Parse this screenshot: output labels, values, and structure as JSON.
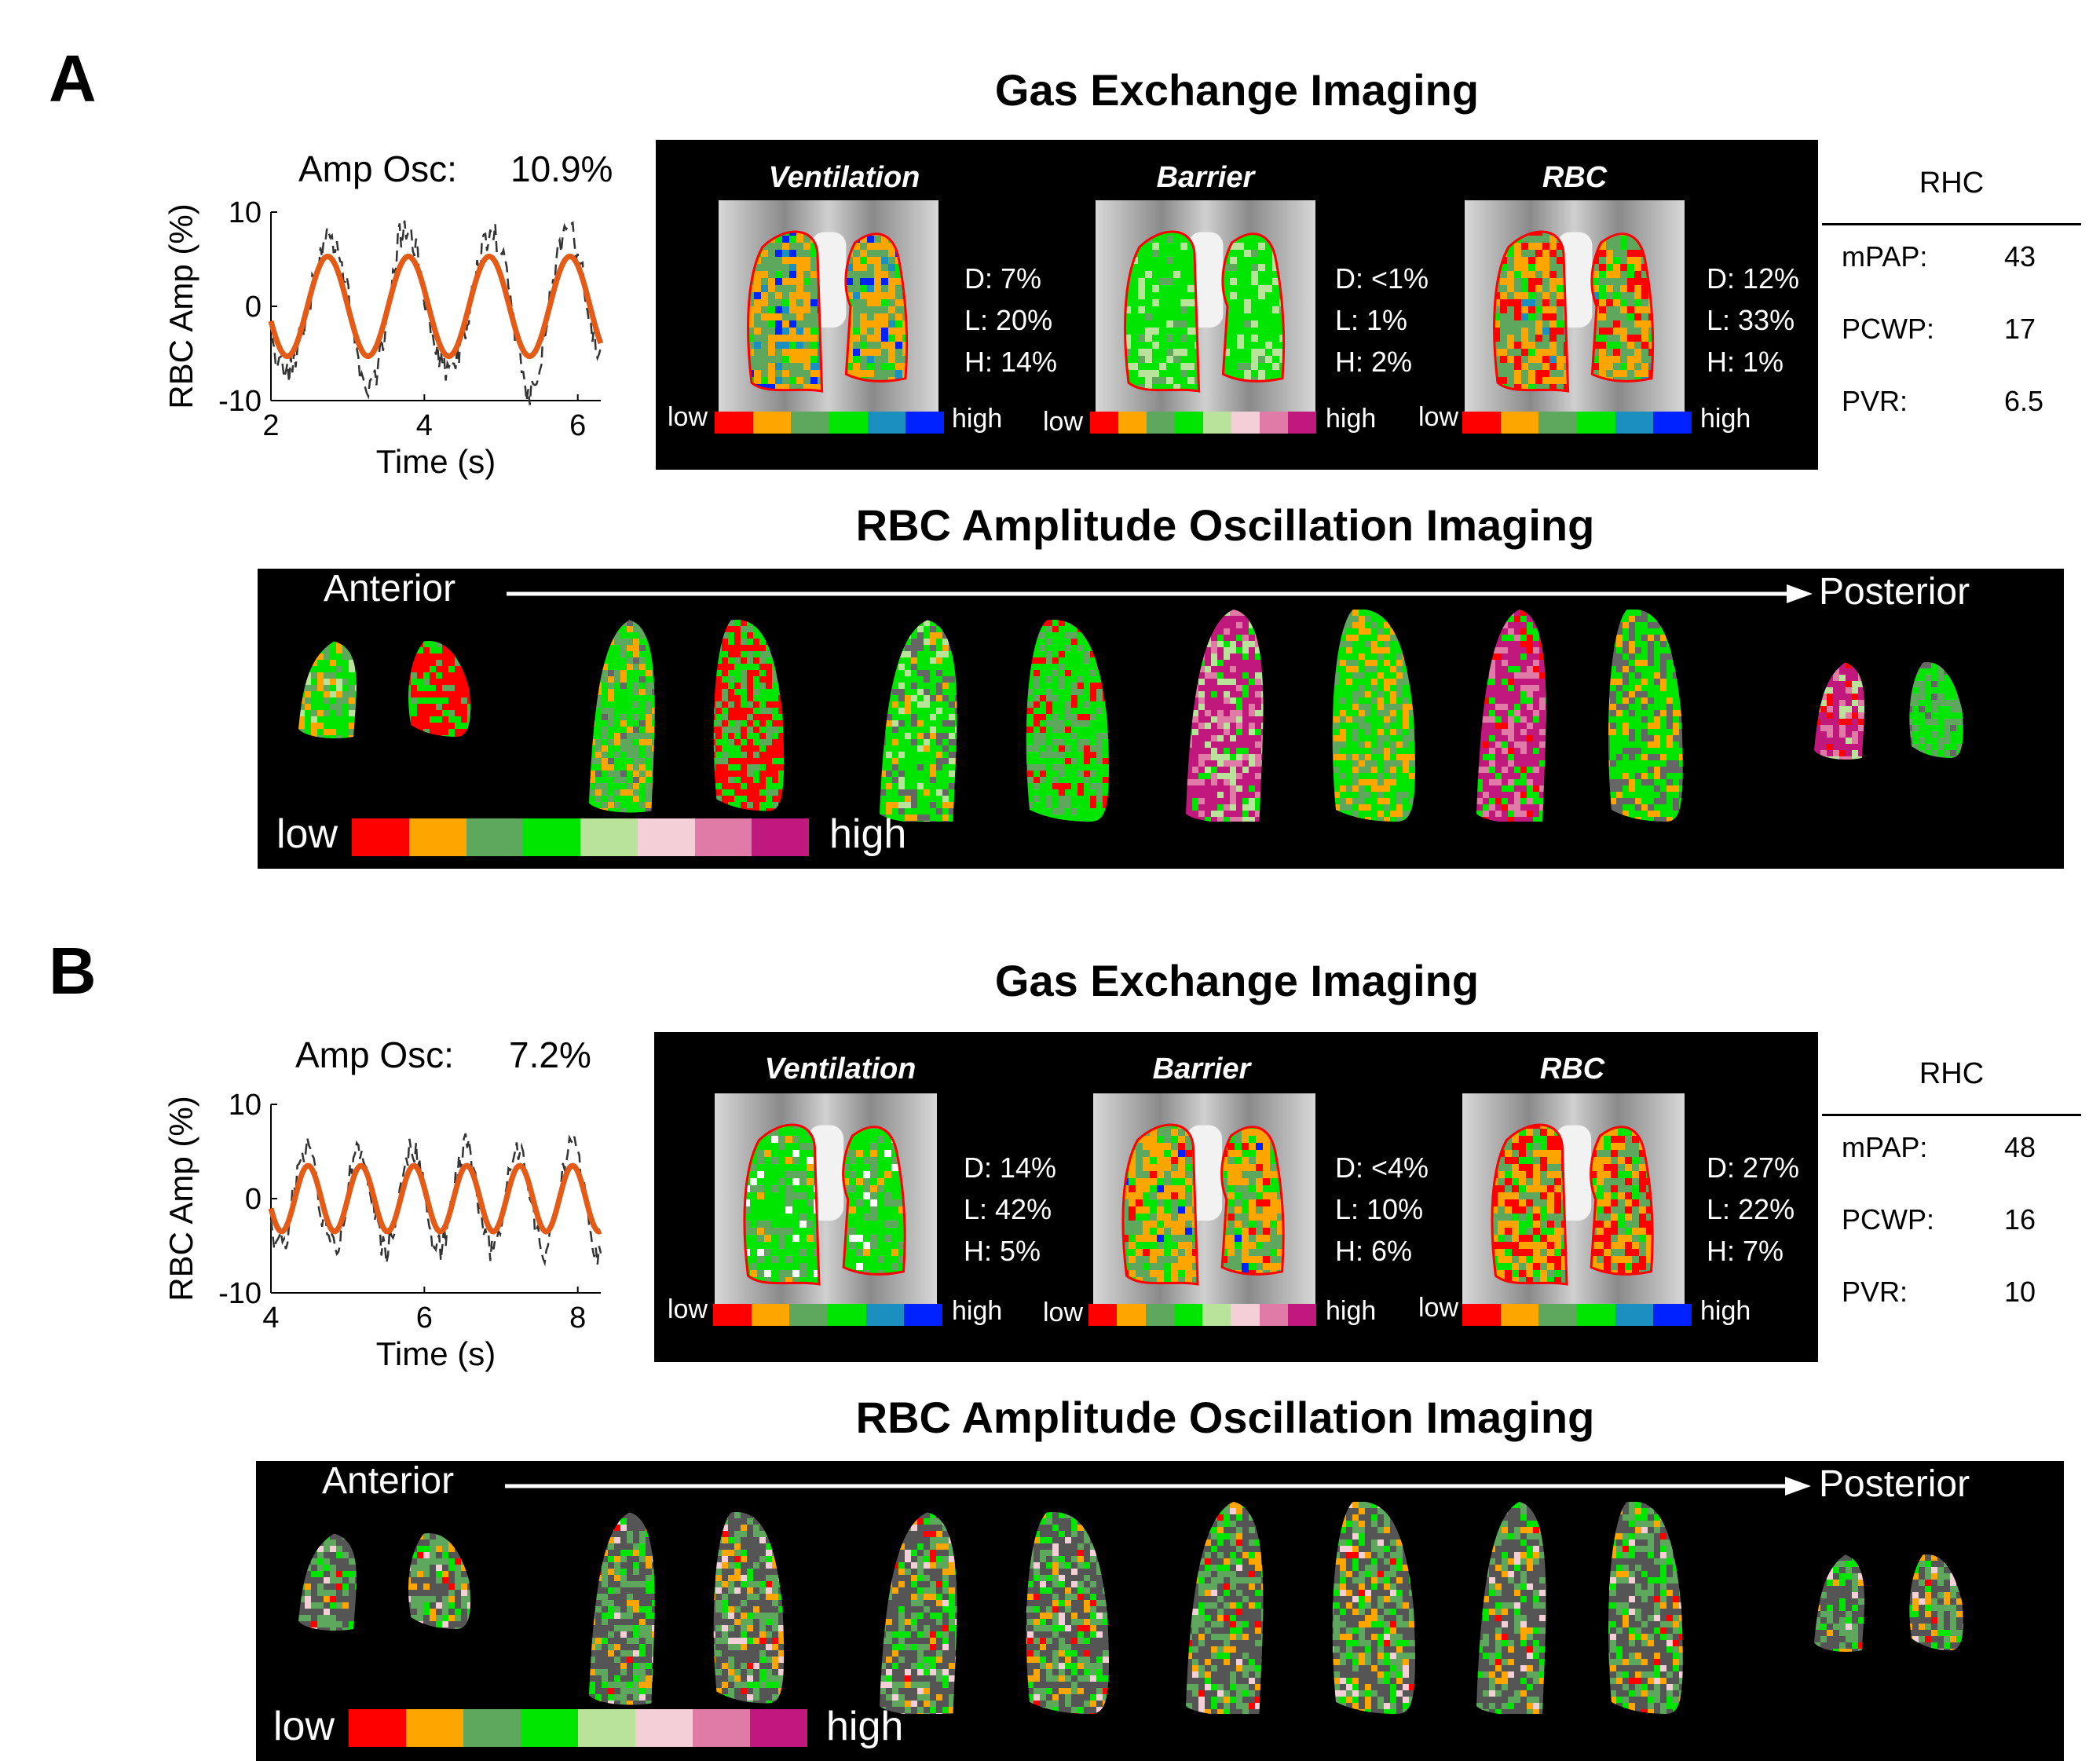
{
  "colors": {
    "gx6": [
      "#ff0000",
      "#ffa500",
      "#5ea85e",
      "#00e600",
      "#1b8fbf",
      "#0022ff"
    ],
    "rbc8": [
      "#ff0000",
      "#ffa500",
      "#5ea85e",
      "#00e600",
      "#b9e39a",
      "#f5cfd8",
      "#e07aa6",
      "#c0187c"
    ],
    "fit": "#e35b17",
    "raw": "#333333"
  },
  "panels": [
    {
      "letter": "A",
      "gx_title": "Gas Exchange Imaging",
      "rbc_title": "RBC Amplitude Oscillation Imaging",
      "amp_label": "Amp Osc:",
      "amp_value": "10.9%",
      "chart_data": {
        "type": "line",
        "xlabel": "Time (s)",
        "ylabel": "RBC Amp (%)",
        "xlim": [
          2,
          6.3
        ],
        "ylim": [
          -10,
          10
        ],
        "xticks": [
          "2",
          "4",
          "6"
        ],
        "yticks": [
          "10",
          "0",
          "-10"
        ],
        "series": [
          {
            "style": "fit",
            "freq_hz": 0.95,
            "amplitude": 5.3,
            "phase_start_s": 2.0
          },
          {
            "style": "raw",
            "freq_hz": 0.95,
            "amplitude": 7.8,
            "phase_start_s": 2.0
          }
        ]
      },
      "gx": [
        {
          "title": "Ventilation",
          "stats": [
            "D: 7%",
            "L: 20%",
            "H: 14%"
          ],
          "low": "low",
          "high": "high"
        },
        {
          "title": "Barrier",
          "stats": [
            "D: <1%",
            "L: 1%",
            "H: 2%"
          ],
          "low": "low",
          "high": "high"
        },
        {
          "title": "RBC",
          "stats": [
            "D: 12%",
            "L:  33%",
            "H: 1%"
          ],
          "low": "low",
          "high": "high"
        }
      ],
      "rhc": {
        "title": "RHC",
        "rows": [
          {
            "label": "mPAP:",
            "value": "43"
          },
          {
            "label": "PCWP:",
            "value": "17"
          },
          {
            "label": "PVR:",
            "value": "6.5"
          }
        ]
      },
      "rbc_strip": {
        "anterior": "Anterior",
        "posterior": "Posterior",
        "low": "low",
        "high": "high"
      }
    },
    {
      "letter": "B",
      "gx_title": "Gas Exchange Imaging",
      "rbc_title": "RBC Amplitude Oscillation Imaging",
      "amp_label": "Amp Osc:",
      "amp_value": "7.2%",
      "chart_data": {
        "type": "line",
        "xlabel": "Time (s)",
        "ylabel": "RBC Amp (%)",
        "xlim": [
          4,
          8.3
        ],
        "ylim": [
          -10,
          10
        ],
        "xticks": [
          "4",
          "6",
          "8"
        ],
        "yticks": [
          "10",
          "0",
          "-10"
        ],
        "series": [
          {
            "style": "fit",
            "freq_hz": 1.45,
            "amplitude": 3.5,
            "phase_start_s": 4.0
          },
          {
            "style": "raw",
            "freq_hz": 1.45,
            "amplitude": 4.5,
            "phase_start_s": 4.0
          }
        ]
      },
      "gx": [
        {
          "title": "Ventilation",
          "stats": [
            "D: 14%",
            "L: 42%",
            "H: 5%"
          ],
          "low": "low",
          "high": "high"
        },
        {
          "title": "Barrier",
          "stats": [
            "D: <4%",
            "L: 10%",
            "H: 6%"
          ],
          "low": "low",
          "high": "high"
        },
        {
          "title": "RBC",
          "stats": [
            "D: 27%",
            "L:  22%",
            "H: 7%"
          ],
          "low": "low",
          "high": "high"
        }
      ],
      "rhc": {
        "title": "RHC",
        "rows": [
          {
            "label": "mPAP:",
            "value": "48"
          },
          {
            "label": "PCWP:",
            "value": "16"
          },
          {
            "label": "PVR:",
            "value": "10"
          }
        ]
      },
      "rbc_strip": {
        "anterior": "Anterior",
        "posterior": "Posterior",
        "low": "low",
        "high": "high"
      }
    }
  ]
}
